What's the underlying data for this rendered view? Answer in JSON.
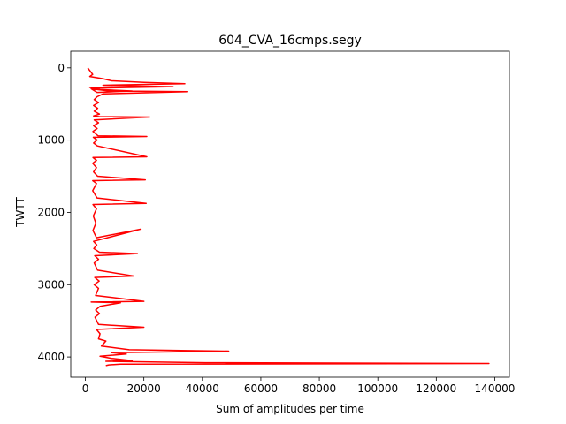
{
  "chart_data": {
    "type": "line",
    "title": "604_CVA_16cmps.segy",
    "xlabel": "Sum of amplitudes per time",
    "ylabel": "TWTT",
    "xlim": [
      -5000,
      145000
    ],
    "ylim": [
      4280,
      -230
    ],
    "y_inverted": true,
    "grid": false,
    "legend": "none",
    "line_color": "#ff0000",
    "x_ticks": [
      0,
      20000,
      40000,
      60000,
      80000,
      100000,
      120000,
      140000
    ],
    "x_tick_labels": [
      "0",
      "20000",
      "40000",
      "60000",
      "80000",
      "100000",
      "120000",
      "140000"
    ],
    "y_ticks": [
      0,
      1000,
      2000,
      3000,
      4000
    ],
    "y_tick_labels": [
      "0",
      "1000",
      "2000",
      "3000",
      "4000"
    ],
    "series": [
      {
        "x": [
          800,
          2500,
          1500,
          6000,
          9000,
          20000,
          34000,
          6000,
          15000,
          30000,
          4000,
          1500,
          5000,
          16000,
          4000,
          2000,
          8000,
          35000,
          6000,
          4000,
          3000,
          4500,
          2800,
          4200,
          3000,
          4800,
          2800,
          3500,
          4800,
          22000,
          3000,
          4500,
          2800,
          4000,
          2600,
          4300,
          21000,
          2700,
          4000,
          2800,
          4100,
          21000,
          2600,
          3800,
          2500,
          3800,
          2800,
          4200,
          20500,
          2500,
          3800,
          2500,
          4000,
          20800,
          2600,
          3800,
          2700,
          3600,
          2600,
          3800,
          19000,
          2800,
          3900,
          2900,
          4800,
          17800,
          3200,
          4500,
          3000,
          4200,
          16500,
          3200,
          4700,
          3000,
          4500,
          3500,
          20000,
          2000,
          12000,
          5000,
          3500,
          4800,
          3300,
          4500,
          20000,
          3800,
          5000,
          4500,
          7000,
          5500,
          15000,
          49000,
          9000,
          14000,
          5000,
          9000,
          16000,
          7000,
          41000,
          138000,
          12000,
          8000,
          7000
        ],
        "y": [
          0,
          90,
          120,
          150,
          180,
          200,
          220,
          240,
          250,
          260,
          280,
          270,
          300,
          320,
          340,
          290,
          320,
          330,
          360,
          400,
          440,
          480,
          520,
          560,
          600,
          640,
          665,
          670,
          675,
          680,
          720,
          760,
          800,
          840,
          880,
          940,
          950,
          960,
          1000,
          1040,
          1080,
          1230,
          1240,
          1280,
          1320,
          1380,
          1440,
          1500,
          1550,
          1560,
          1600,
          1700,
          1800,
          1875,
          1890,
          1950,
          2050,
          2150,
          2250,
          2350,
          2230,
          2400,
          2450,
          2500,
          2550,
          2570,
          2600,
          2650,
          2700,
          2800,
          2880,
          2900,
          2950,
          3000,
          3050,
          3150,
          3230,
          3240,
          3250,
          3300,
          3350,
          3400,
          3450,
          3550,
          3590,
          3620,
          3680,
          3750,
          3780,
          3850,
          3900,
          3920,
          3940,
          3960,
          3990,
          4020,
          4050,
          4060,
          4080,
          4090,
          4100,
          4110,
          4120
        ]
      }
    ]
  }
}
